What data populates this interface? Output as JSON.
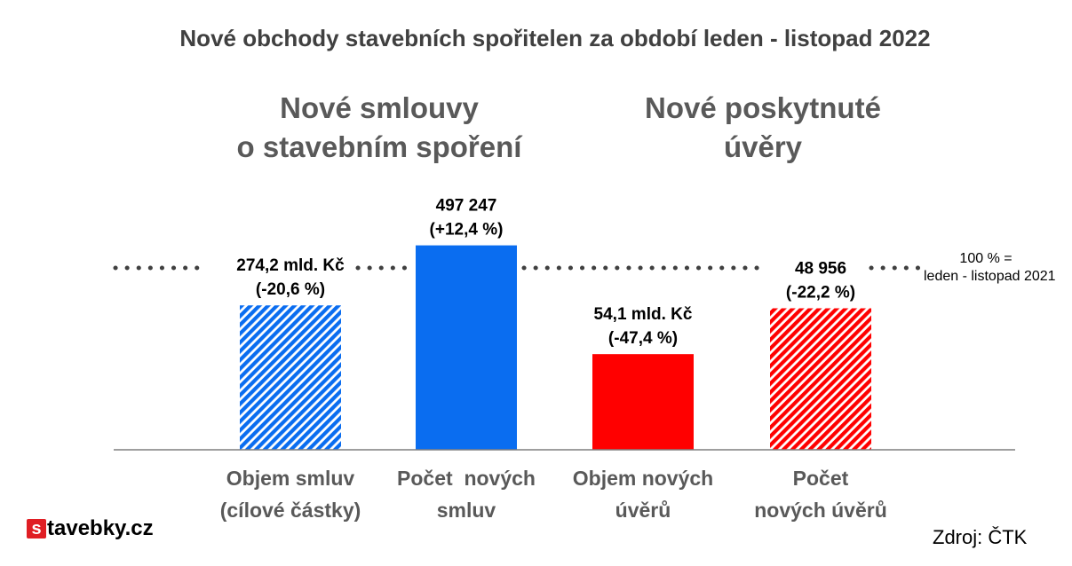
{
  "header": {
    "title": "Nové obchody stavebních spořitelen za období leden - listopad 2022"
  },
  "groups": [
    {
      "lines": [
        "Nové smlouvy",
        "o stavebním spoření"
      ]
    },
    {
      "lines": [
        "Nové poskytnuté",
        "úvěry"
      ]
    }
  ],
  "reference": {
    "lines": [
      "100 % =",
      "leden - listopad 2021"
    ]
  },
  "source": "Zdroj: ČTK",
  "logo": {
    "letter": "s",
    "text": "tavebky.cz"
  },
  "colors": {
    "blue": "#0a6df0",
    "blue_light": "#9cc3f7",
    "red": "#ff0000",
    "red_light": "#f7a8a8",
    "axis": "#7f7f7f",
    "reference_line": "#404040"
  },
  "chart_data": {
    "type": "bar",
    "categories": [
      [
        "Objem smluv",
        "(cílové částky)"
      ],
      [
        "Počet  nových",
        "smluv"
      ],
      [
        "Objem nových",
        "úvěrů"
      ],
      [
        "Počet",
        "nových úvěrů"
      ]
    ],
    "values": [
      79.4,
      112.4,
      52.6,
      77.8
    ],
    "value_unit": "% of leden - listopad 2021",
    "data_labels": [
      [
        "274,2 mld. Kč",
        "(-20,6 %)"
      ],
      [
        "497 247",
        "(+12,4 %)"
      ],
      [
        "54,1 mld. Kč",
        "(-47,4 %)"
      ],
      [
        "48 956",
        "(-22,2 %)"
      ]
    ],
    "bar_styles": [
      "hatched-blue",
      "solid-blue",
      "solid-red",
      "hatched-red"
    ],
    "reference_value": 100,
    "ylim": [
      0,
      120
    ],
    "grid": false,
    "legend": "none"
  }
}
